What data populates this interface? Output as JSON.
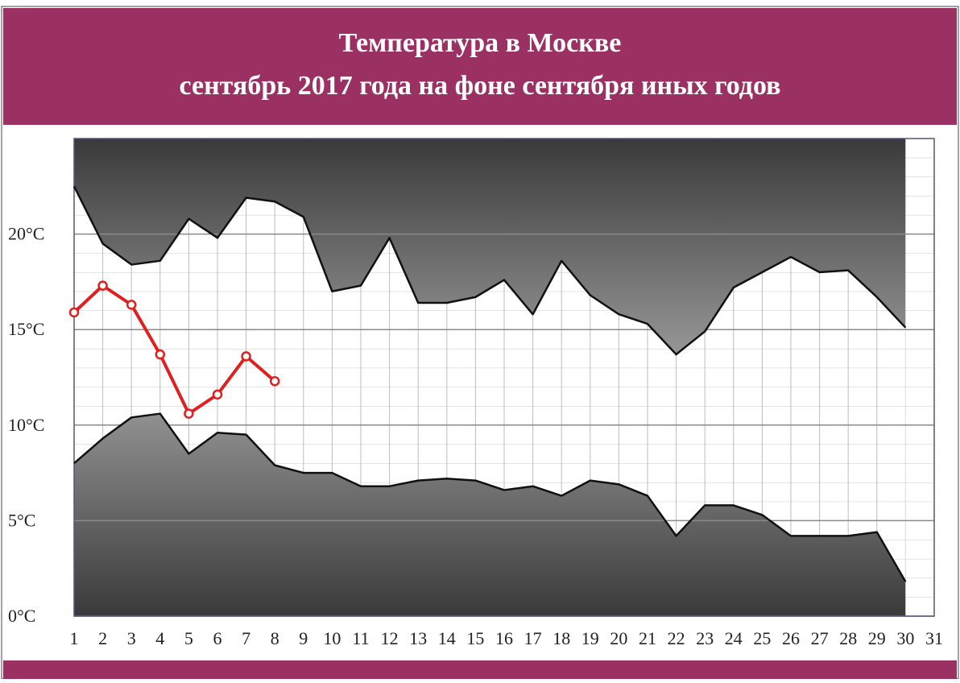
{
  "chart_data": {
    "type": "line",
    "title": "Температура в Москве",
    "subtitle": "сентябрь 2017 года на фоне сентября иных годов",
    "x": [
      1,
      2,
      3,
      4,
      5,
      6,
      7,
      8,
      9,
      10,
      11,
      12,
      13,
      14,
      15,
      16,
      17,
      18,
      19,
      20,
      21,
      22,
      23,
      24,
      25,
      26,
      27,
      28,
      29,
      30
    ],
    "xlim": [
      1,
      31
    ],
    "xticks": [
      1,
      2,
      3,
      4,
      5,
      6,
      7,
      8,
      9,
      10,
      11,
      12,
      13,
      14,
      15,
      16,
      17,
      18,
      19,
      20,
      21,
      22,
      23,
      24,
      25,
      26,
      27,
      28,
      29,
      30,
      31
    ],
    "ylim": [
      0,
      25
    ],
    "yticks": [
      {
        "value": 0,
        "label": "0°C"
      },
      {
        "value": 5,
        "label": "5°C"
      },
      {
        "value": 10,
        "label": "10°C"
      },
      {
        "value": 15,
        "label": "15°C"
      },
      {
        "value": 20,
        "label": "20°C"
      }
    ],
    "grid": true,
    "series": [
      {
        "color": "#111111",
        "values": [
          22.5,
          19.5,
          18.4,
          18.6,
          20.8,
          19.8,
          21.9,
          21.7,
          20.9,
          17.0,
          17.3,
          19.8,
          16.4,
          16.4,
          16.7,
          17.6,
          15.8,
          18.6,
          16.8,
          15.8,
          15.3,
          13.7,
          14.9,
          17.2,
          18.0,
          18.8,
          18.0,
          18.1,
          16.7,
          15.1
        ]
      },
      {
        "color": "#111111",
        "values": [
          8.0,
          9.3,
          10.4,
          10.6,
          8.5,
          9.6,
          9.5,
          7.9,
          7.5,
          7.5,
          6.8,
          6.8,
          7.1,
          7.2,
          7.1,
          6.6,
          6.8,
          6.3,
          7.1,
          6.9,
          6.3,
          4.2,
          5.8,
          5.8,
          5.3,
          4.2,
          4.2,
          4.2,
          4.4,
          1.8
        ]
      },
      {
        "color": "#e02020",
        "markers": true,
        "values": [
          15.9,
          17.3,
          16.3,
          13.7,
          10.6,
          11.6,
          13.6,
          12.3,
          null,
          null,
          null,
          null,
          null,
          null,
          null,
          null,
          null,
          null,
          null,
          null,
          null,
          null,
          null,
          null,
          null,
          null,
          null,
          null,
          null,
          null
        ]
      }
    ]
  }
}
